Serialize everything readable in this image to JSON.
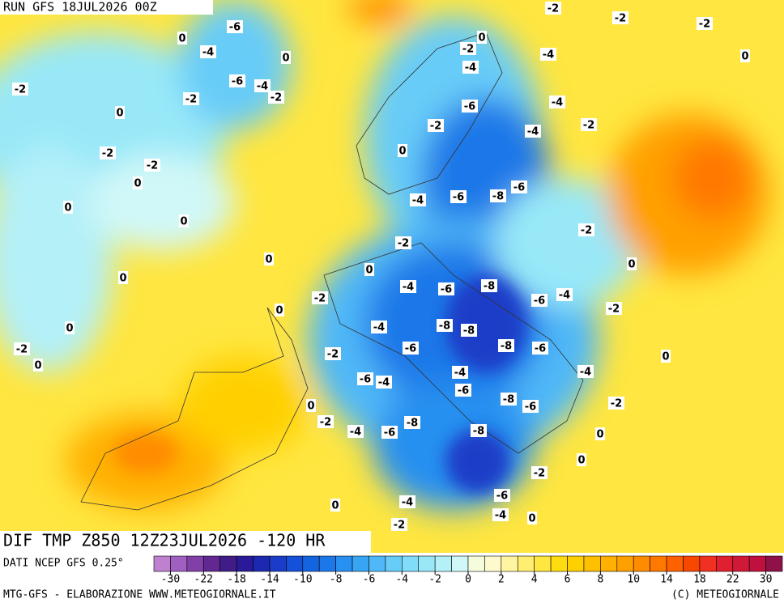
{
  "header": {
    "run": "RUN GFS 18JUL2026 00Z",
    "field": "DIF TMP Z850 12Z23JUL2026 -120 HR"
  },
  "footer": {
    "source": "DATI NCEP GFS 0.25°",
    "credits": "MTG-GFS - ELABORAZIONE WWW.METEOGIORNALE.IT",
    "copyright": "(C) METEOGIORNALE"
  },
  "colorbar": {
    "ticks": [
      -30,
      -22,
      -18,
      -14,
      -10,
      -8,
      -6,
      -4,
      -2,
      0,
      2,
      4,
      6,
      8,
      10,
      14,
      18,
      22,
      30
    ],
    "colors": [
      "#c080d0",
      "#a060c0",
      "#8040a8",
      "#602890",
      "#401c88",
      "#2a1a9a",
      "#1c28b0",
      "#1a3cc8",
      "#1450d8",
      "#1464e0",
      "#1c78e8",
      "#2890f0",
      "#38a4f4",
      "#50b8f8",
      "#68ccf8",
      "#80dcf8",
      "#98e8f8",
      "#b4f0f8",
      "#d0f8f8",
      "#f4fcdc",
      "#fffacc",
      "#fff4a0",
      "#ffee70",
      "#ffe640",
      "#ffdc10",
      "#ffd000",
      "#ffc000",
      "#ffb000",
      "#ffa000",
      "#ff8c00",
      "#ff7800",
      "#ff6000",
      "#f84800",
      "#f03020",
      "#e02030",
      "#d01838",
      "#c01040",
      "#901048"
    ]
  },
  "contour_labels": [
    -6,
    -2,
    -2,
    -2,
    0,
    -4,
    0,
    0,
    -2,
    -4,
    0,
    -4,
    -6,
    -4,
    -2,
    -2,
    -2,
    -6,
    -4,
    0,
    -2,
    -4,
    -2,
    -2,
    0,
    -2,
    0,
    -6,
    -4,
    -6,
    -8,
    0,
    0,
    -2,
    -2,
    0,
    0,
    0,
    0,
    -4,
    -6,
    -8,
    -4,
    -6,
    -2,
    -2,
    0,
    -4,
    -8,
    -8,
    0,
    -2,
    -6,
    -8,
    -6,
    -2,
    0,
    0,
    -4,
    -4,
    -6,
    -4,
    -6,
    -8,
    -6,
    -2,
    0,
    -2,
    -8,
    -4,
    -6,
    -8,
    0,
    0,
    -2,
    -6,
    0,
    -4,
    -4,
    0,
    -2
  ]
}
